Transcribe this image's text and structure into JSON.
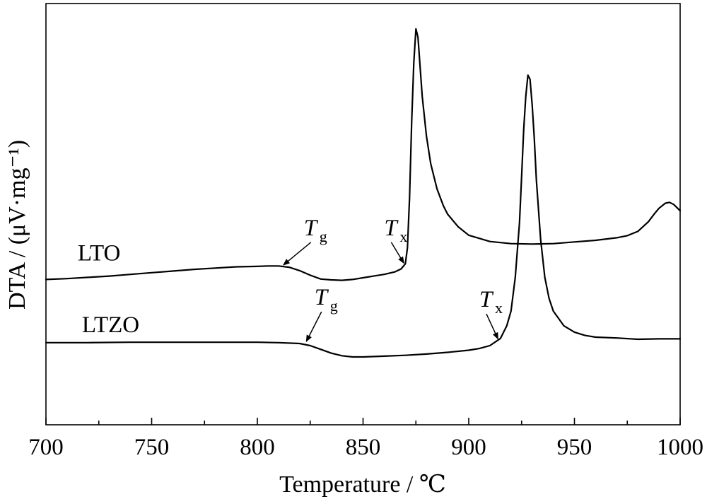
{
  "chart_data": {
    "type": "line",
    "title": "",
    "xlabel": "Temperature / ℃",
    "ylabel": "DTA / (μV·mg⁻¹)",
    "xlim": [
      700,
      1000
    ],
    "ylim": [
      0,
      100
    ],
    "x_ticks": [
      700,
      750,
      800,
      850,
      900,
      950,
      1000
    ],
    "x_minor_step": 25,
    "y_ticks_shown": false,
    "grid": false,
    "series": [
      {
        "name": "LTO",
        "x": [
          700,
          710,
          720,
          730,
          740,
          750,
          760,
          770,
          780,
          790,
          800,
          805,
          810,
          815,
          820,
          825,
          830,
          835,
          840,
          845,
          850,
          855,
          860,
          865,
          868,
          870,
          871,
          872,
          873,
          874,
          875,
          876,
          877,
          878,
          880,
          882,
          885,
          888,
          890,
          895,
          900,
          910,
          920,
          930,
          940,
          950,
          960,
          970,
          975,
          980,
          985,
          988,
          990,
          993,
          995,
          997,
          1000
        ],
        "y": [
          34.5,
          34.7,
          35.0,
          35.3,
          35.7,
          36.1,
          36.5,
          36.9,
          37.2,
          37.5,
          37.6,
          37.7,
          37.7,
          37.4,
          36.6,
          35.5,
          34.6,
          34.4,
          34.3,
          34.5,
          34.9,
          35.3,
          35.7,
          36.3,
          37.0,
          38.2,
          42.0,
          54.0,
          72.0,
          86.0,
          94.0,
          92.0,
          85.0,
          78.0,
          68.5,
          62.0,
          56.0,
          52.0,
          50.0,
          47.0,
          45.0,
          43.5,
          43.0,
          42.9,
          43.0,
          43.4,
          43.8,
          44.4,
          44.9,
          45.9,
          48.2,
          50.2,
          51.4,
          52.6,
          52.8,
          52.3,
          50.8
        ]
      },
      {
        "name": "LTZO",
        "x": [
          700,
          720,
          740,
          760,
          780,
          800,
          810,
          820,
          825,
          830,
          835,
          840,
          845,
          850,
          860,
          870,
          880,
          890,
          900,
          905,
          910,
          915,
          918,
          920,
          922,
          924,
          925,
          926,
          927,
          928,
          929,
          930,
          931,
          932,
          934,
          936,
          938,
          940,
          945,
          950,
          955,
          960,
          970,
          980,
          990,
          1000
        ],
        "y": [
          19.5,
          19.5,
          19.6,
          19.6,
          19.6,
          19.6,
          19.5,
          19.3,
          18.8,
          17.9,
          17.0,
          16.4,
          16.1,
          16.1,
          16.3,
          16.5,
          16.8,
          17.2,
          17.7,
          18.1,
          18.8,
          20.5,
          23.5,
          27.0,
          35.0,
          48.0,
          59.0,
          70.0,
          78.0,
          83.0,
          82.0,
          76.0,
          68.0,
          58.0,
          44.0,
          35.0,
          30.0,
          27.0,
          23.5,
          22.0,
          21.2,
          20.8,
          20.6,
          20.3,
          20.4,
          20.4
        ]
      }
    ],
    "series_labels": [
      {
        "text": "LTO",
        "x": 715,
        "y": 39
      },
      {
        "text": "LTZO",
        "x": 717,
        "y": 22
      }
    ],
    "annotations": [
      {
        "series": "LTO",
        "main": "T",
        "sub": "g",
        "label_x": 822,
        "label_y": 45,
        "arrow_to_x": 812,
        "arrow_to_y": 37.8
      },
      {
        "series": "LTO",
        "main": "T",
        "sub": "x",
        "label_x": 860,
        "label_y": 45,
        "arrow_to_x": 869.5,
        "arrow_to_y": 38.2
      },
      {
        "series": "LTZO",
        "main": "T",
        "sub": "g",
        "label_x": 827,
        "label_y": 28.5,
        "arrow_to_x": 823,
        "arrow_to_y": 19.6
      },
      {
        "series": "LTZO",
        "main": "T",
        "sub": "x",
        "label_x": 905,
        "label_y": 28,
        "arrow_to_x": 914,
        "arrow_to_y": 20.2
      }
    ]
  }
}
